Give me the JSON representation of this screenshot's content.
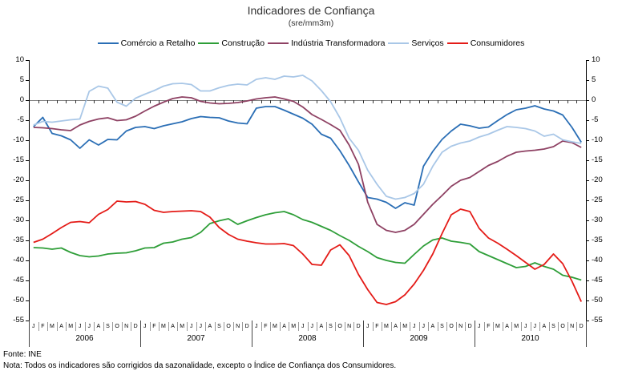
{
  "title": "Indicadores de Confiança",
  "subtitle": "(sre/mm3m)",
  "footer": {
    "source": "Fonte: INE",
    "note": "Nota: Todos os indicadores são corrigidos da sazonalidade, excepto o Índice de Confiança dos Consumidores."
  },
  "chart_data": {
    "type": "line",
    "title": "Indicadores de Confiança",
    "subtitle": "(sre/mm3m)",
    "legend_position": "top",
    "grid": false,
    "ylim": [
      -55,
      10
    ],
    "yticks": [
      10,
      5,
      0,
      -5,
      -10,
      -15,
      -20,
      -25,
      -30,
      -35,
      -40,
      -45,
      -50,
      -55
    ],
    "years": [
      "2006",
      "2007",
      "2008",
      "2009",
      "2010"
    ],
    "month_letters": [
      "J",
      "F",
      "M",
      "A",
      "M",
      "J",
      "J",
      "A",
      "S",
      "O",
      "N",
      "D"
    ],
    "axis_color": "#000000",
    "zero_line_color": "#808080",
    "month_tick_color": "#999999",
    "series": [
      {
        "name": "Comércio a Retalho",
        "color": "#2A6EB5",
        "values": [
          -6.6,
          -4.3,
          -8.3,
          -8.9,
          -9.9,
          -12.0,
          -9.9,
          -11.2,
          -9.8,
          -9.9,
          -7.7,
          -6.8,
          -6.6,
          -7.1,
          -6.4,
          -5.9,
          -5.4,
          -4.6,
          -4.1,
          -4.3,
          -4.4,
          -5.2,
          -5.7,
          -5.9,
          -2.0,
          -1.6,
          -1.6,
          -2.5,
          -3.5,
          -4.5,
          -6.0,
          -8.5,
          -9.5,
          -12.6,
          -16.3,
          -20.4,
          -24.3,
          -24.7,
          -25.5,
          -27.0,
          -25.6,
          -26.2,
          -16.5,
          -12.8,
          -9.8,
          -7.7,
          -6.0,
          -6.4,
          -7.0,
          -6.7,
          -5.1,
          -3.6,
          -2.4,
          -2.0,
          -1.4,
          -2.2,
          -2.7,
          -3.7,
          -6.8,
          -10.5
        ]
      },
      {
        "name": "Construção",
        "color": "#2E9E38",
        "values": [
          -36.8,
          -36.9,
          -37.2,
          -36.9,
          -38.0,
          -38.8,
          -39.1,
          -38.9,
          -38.4,
          -38.2,
          -38.1,
          -37.6,
          -36.9,
          -36.8,
          -35.7,
          -35.4,
          -34.7,
          -34.3,
          -33.0,
          -30.8,
          -30.1,
          -29.6,
          -31.0,
          -30.1,
          -29.3,
          -28.6,
          -28.1,
          -27.8,
          -28.6,
          -29.8,
          -30.5,
          -31.5,
          -32.5,
          -33.8,
          -35.0,
          -36.5,
          -37.8,
          -39.3,
          -40.0,
          -40.5,
          -40.7,
          -38.5,
          -36.4,
          -34.9,
          -34.4,
          -35.2,
          -35.5,
          -35.9,
          -37.8,
          -38.8,
          -39.8,
          -40.8,
          -41.8,
          -41.5,
          -40.6,
          -41.5,
          -42.2,
          -43.7,
          -44.2,
          -44.9
        ]
      },
      {
        "name": "Indústria Transformadora",
        "color": "#8E4163",
        "values": [
          -6.8,
          -6.9,
          -7.1,
          -7.4,
          -7.6,
          -6.2,
          -5.3,
          -4.7,
          -4.4,
          -5.1,
          -4.9,
          -4.0,
          -2.7,
          -1.5,
          -0.5,
          0.4,
          0.8,
          0.6,
          -0.3,
          -0.7,
          -0.9,
          -0.8,
          -0.6,
          -0.2,
          0.3,
          0.6,
          0.8,
          0.3,
          -0.3,
          -1.7,
          -3.6,
          -4.8,
          -6.1,
          -7.5,
          -11.2,
          -16.0,
          -25.5,
          -31.0,
          -32.5,
          -33.0,
          -32.5,
          -31.0,
          -28.5,
          -26.0,
          -23.8,
          -21.5,
          -20.0,
          -19.3,
          -17.8,
          -16.3,
          -15.3,
          -14.0,
          -13.0,
          -12.7,
          -12.5,
          -12.2,
          -11.6,
          -10.2,
          -10.6,
          -11.8
        ]
      },
      {
        "name": "Serviços",
        "color": "#A9C7E7",
        "values": [
          -6.2,
          -5.3,
          -5.5,
          -5.2,
          -4.9,
          -4.7,
          2.2,
          3.5,
          3.0,
          -0.5,
          -1.5,
          0.5,
          1.5,
          2.4,
          3.5,
          4.1,
          4.2,
          3.9,
          2.3,
          2.3,
          3.1,
          3.7,
          4.0,
          3.8,
          5.2,
          5.6,
          5.2,
          6.0,
          5.8,
          6.2,
          4.8,
          2.4,
          -0.4,
          -4.4,
          -9.5,
          -12.5,
          -17.5,
          -21.0,
          -24.0,
          -24.7,
          -24.3,
          -23.3,
          -21.0,
          -16.5,
          -13.0,
          -11.5,
          -10.7,
          -10.2,
          -9.2,
          -8.5,
          -7.5,
          -6.6,
          -6.8,
          -7.1,
          -7.7,
          -9.0,
          -8.5,
          -9.9,
          -10.4,
          -10.8
        ]
      },
      {
        "name": "Consumidores",
        "color": "#E41B17",
        "values": [
          -35.5,
          -34.7,
          -33.3,
          -31.8,
          -30.5,
          -30.3,
          -30.6,
          -28.5,
          -27.3,
          -25.2,
          -25.4,
          -25.3,
          -26.0,
          -27.5,
          -28.0,
          -27.8,
          -27.7,
          -27.6,
          -27.8,
          -29.2,
          -31.8,
          -33.5,
          -34.7,
          -35.2,
          -35.6,
          -35.9,
          -35.9,
          -35.8,
          -36.3,
          -38.4,
          -41.0,
          -41.2,
          -37.4,
          -36.1,
          -38.8,
          -43.5,
          -47.3,
          -50.5,
          -51.0,
          -50.3,
          -48.6,
          -45.9,
          -42.5,
          -38.4,
          -33.3,
          -28.6,
          -27.2,
          -27.8,
          -32.0,
          -34.4,
          -35.7,
          -37.2,
          -38.8,
          -40.5,
          -42.2,
          -41.0,
          -38.4,
          -40.8,
          -45.2,
          -50.3
        ]
      }
    ]
  }
}
